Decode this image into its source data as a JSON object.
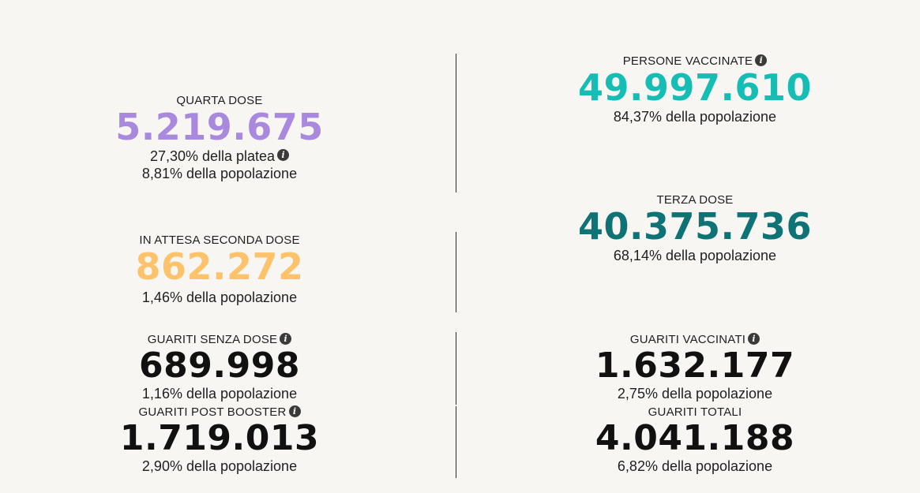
{
  "colors": {
    "quarta": "#a989de",
    "attesa": "#fdc36c",
    "vaccinate": "#16bdb4",
    "terza": "#0f7376",
    "black": "#111111"
  },
  "left": {
    "quarta": {
      "label": "QUARTA DOSE",
      "value": "5.219.675",
      "sub1": "27,30% della platea",
      "sub2": "8,81% della popolazione"
    },
    "attesa": {
      "label": "IN ATTESA SECONDA DOSE",
      "value": "862.272",
      "sub": "1,46% della popolazione"
    },
    "guariti_senza": {
      "label": "GUARITI SENZA DOSE",
      "value": "689.998",
      "sub": "1,16% della popolazione"
    },
    "guariti_booster": {
      "label": "GUARITI POST BOOSTER",
      "value": "1.719.013",
      "sub": "2,90% della popolazione"
    }
  },
  "right": {
    "vaccinate": {
      "label": "PERSONE VACCINATE",
      "value": "49.997.610",
      "sub": "84,37% della popolazione"
    },
    "terza": {
      "label": "TERZA DOSE",
      "value": "40.375.736",
      "sub": "68,14% della popolazione"
    },
    "guariti_vaccinati": {
      "label": "GUARITI VACCINATI",
      "value": "1.632.177",
      "sub": "2,75% della popolazione"
    },
    "guariti_totali": {
      "label": "GUARITI TOTALI",
      "value": "4.041.188",
      "sub": "6,82% della popolazione"
    }
  },
  "icons": {
    "info": "i"
  }
}
